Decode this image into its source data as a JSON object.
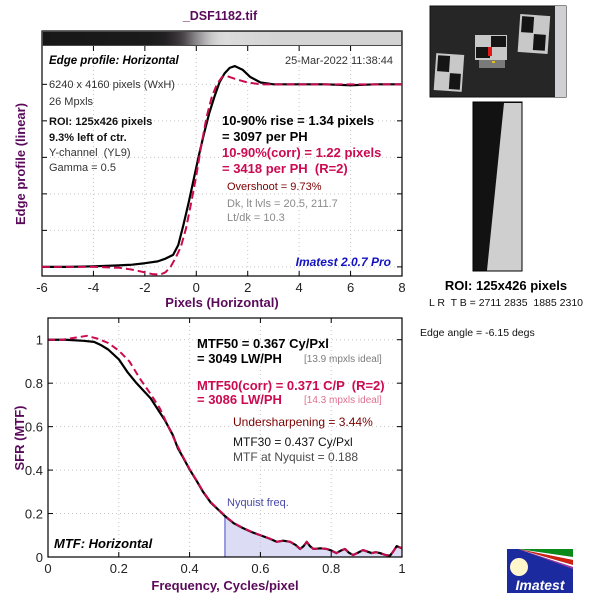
{
  "title": "_DSF1182.tif",
  "edge_panel": {
    "heading": "Edge profile: Horizontal",
    "timestamp": "25-Mar-2022 11:38:44",
    "image_size": "6240 x 4160 pixels (WxH)",
    "megapixels": "26 Mpxls",
    "roi": "ROI: 125x426 pixels",
    "roi_position": "9.3% left of ctr.",
    "channel": "Y-channel  (YL9)",
    "gamma": "Gamma = 0.5",
    "rise": "10-90% rise = 1.34 pixels",
    "rise_ph": "= 3097 per PH",
    "rise_corr": "10-90%(corr) = 1.22 pixels",
    "rise_corr_ph": "= 3418 per PH  (R=2)",
    "overshoot": "Overshoot = 9.73%",
    "levels": "Dk, lt lvls = 20.5, 211.7",
    "ratio": "Lt/dk = 10.3",
    "version": "Imatest 2.0.7 Pro"
  },
  "mtf_panel": {
    "heading": "MTF: Horizontal",
    "mtf50": "MTF50 = 0.367 Cy/Pxl",
    "mtf50_lwph": "= 3049 LW/PH",
    "mtf50_ideal": "[13.9 mpxls ideal]",
    "mtf50_corr": "MTF50(corr) = 0.371 C/P  (R=2)",
    "mtf50_corr_lwph": "= 3086 LW/PH",
    "mtf50_corr_ideal": "[14.3 mpxls ideal]",
    "undersharpening": "Undersharpening = 3.44%",
    "mtf30": "MTF30 = 0.437 Cy/Pxl",
    "mtf_nyquist": "MTF at Nyquist = 0.188",
    "nyquist_label": "Nyquist freq."
  },
  "roi_panel": {
    "roi_label": "ROI: 125x426 pixels",
    "coords": "L R  T B = 2711 2835  1885 2310",
    "edge_angle": "Edge angle = -6.15 degs"
  },
  "logo": {
    "text": "Imatest"
  },
  "colors": {
    "axis_label": "#5a0a5a",
    "measured": "#000000",
    "corrected": "#cc0a50",
    "nyquist_fill": "#dcdcf4",
    "nyquist_line": "#9a9ae0",
    "version": "#1212c2"
  },
  "chart_data": [
    {
      "type": "line",
      "title": "Edge profile: Horizontal",
      "xlabel": "Pixels (Horizontal)",
      "ylabel": "Edge profile (linear)",
      "xlim": [
        -6,
        8
      ],
      "ylim": [
        -0.05,
        1.21
      ],
      "xticks": [
        -6,
        -4,
        -2,
        0,
        2,
        4,
        6,
        8
      ],
      "xtick_labels": [
        "-6",
        "-4",
        "-2",
        "0",
        "2",
        "4",
        "6",
        "8"
      ],
      "yticks": [
        0,
        0.2,
        0.4,
        0.6,
        0.8,
        1.0
      ],
      "ytick_labels": [
        "",
        "",
        "",
        "",
        "",
        ""
      ],
      "grid": true,
      "series": [
        {
          "name": "Edge profile",
          "style": "solid",
          "color": "#000000",
          "x": [
            -6,
            -5,
            -4,
            -3,
            -2.5,
            -2,
            -1.5,
            -1.2,
            -0.9,
            -0.7,
            -0.5,
            -0.3,
            -0.1,
            0.1,
            0.3,
            0.5,
            0.7,
            0.9,
            1.1,
            1.3,
            1.5,
            1.8,
            2.1,
            2.5,
            3,
            4,
            5,
            6,
            7,
            8
          ],
          "y": [
            0,
            0,
            0.003,
            0.008,
            0.012,
            0.02,
            0.03,
            0.045,
            0.066,
            0.12,
            0.23,
            0.35,
            0.48,
            0.61,
            0.73,
            0.84,
            0.93,
            1.01,
            1.06,
            1.09,
            1.1,
            1.08,
            1.04,
            1.01,
            1.0,
            1.0,
            1.0,
            0.995,
            1.0,
            1.0
          ]
        },
        {
          "name": "Edge profile (corr)",
          "style": "dashed",
          "color": "#cc0a50",
          "x": [
            -6,
            -4,
            -3,
            -2.5,
            -2,
            -1.7,
            -1.4,
            -1.2,
            -1.0,
            -0.8,
            -0.6,
            -0.4,
            -0.2,
            0,
            0.2,
            0.4,
            0.6,
            0.8,
            1.0,
            1.2,
            1.5,
            2,
            2.5,
            3,
            4,
            5,
            6,
            7,
            8
          ],
          "y": [
            0,
            0,
            -0.005,
            -0.015,
            -0.03,
            -0.04,
            -0.042,
            -0.03,
            0,
            0.05,
            0.11,
            0.21,
            0.35,
            0.5,
            0.67,
            0.82,
            0.93,
            1.0,
            1.04,
            1.045,
            1.03,
            1.01,
            1.0,
            1.0,
            1.0,
            1.0,
            1.0,
            1.0,
            1.0
          ]
        }
      ]
    },
    {
      "type": "line",
      "title": "MTF: Horizontal",
      "xlabel": "Frequency, Cycles/pixel",
      "ylabel": "SFR (MTF)",
      "xlim": [
        0,
        1
      ],
      "ylim": [
        0,
        1.1
      ],
      "xticks": [
        0,
        0.2,
        0.4,
        0.6,
        0.8,
        1
      ],
      "xtick_labels": [
        "0",
        "0.2",
        "0.4",
        "0.6",
        "0.8",
        "1"
      ],
      "yticks": [
        0,
        0.2,
        0.4,
        0.6,
        0.8,
        1
      ],
      "ytick_labels": [
        "0",
        "0.2",
        "0.4",
        "0.6",
        "0.8",
        "1"
      ],
      "grid": true,
      "nyquist": 0.5,
      "shade_from": 0.5,
      "series": [
        {
          "name": "MTF",
          "style": "solid",
          "color": "#000000",
          "x": [
            0,
            0.05,
            0.1,
            0.13,
            0.15,
            0.17,
            0.2,
            0.225,
            0.25,
            0.27,
            0.29,
            0.31,
            0.33,
            0.353,
            0.367,
            0.381,
            0.401,
            0.42,
            0.438,
            0.46,
            0.486,
            0.5,
            0.525,
            0.551,
            0.575,
            0.6,
            0.625,
            0.646,
            0.665,
            0.684,
            0.7,
            0.712,
            0.722,
            0.731,
            0.74,
            0.75,
            0.77,
            0.787,
            0.8,
            0.815,
            0.828,
            0.839,
            0.85,
            0.862,
            0.876,
            0.89,
            0.902,
            0.914,
            0.926,
            0.938,
            0.952,
            0.966,
            0.975,
            0.985,
            1.0
          ],
          "y": [
            1.0,
            1.0,
            0.995,
            0.99,
            0.975,
            0.955,
            0.91,
            0.85,
            0.8,
            0.765,
            0.73,
            0.68,
            0.63,
            0.56,
            0.5,
            0.46,
            0.4,
            0.35,
            0.3,
            0.25,
            0.21,
            0.188,
            0.155,
            0.133,
            0.115,
            0.1,
            0.085,
            0.07,
            0.075,
            0.07,
            0.055,
            0.037,
            0.05,
            0.07,
            0.05,
            0.037,
            0.04,
            0.037,
            0.03,
            0.018,
            0.03,
            0.037,
            0.02,
            0.009,
            0.02,
            0.032,
            0.025,
            0.018,
            0.022,
            0.018,
            0.01,
            0.006,
            0.025,
            0.05,
            0.04
          ]
        },
        {
          "name": "MTF (corr)",
          "style": "dashed",
          "color": "#cc0a50",
          "x": [
            0,
            0.04,
            0.08,
            0.11,
            0.14,
            0.17,
            0.2,
            0.23,
            0.26,
            0.29,
            0.316,
            0.34,
            0.36,
            0.381,
            0.401,
            0.42,
            0.438,
            0.46,
            0.486,
            0.5,
            0.525,
            0.551,
            0.575,
            0.6,
            0.625,
            0.646,
            0.665,
            0.684,
            0.7,
            0.712,
            0.722,
            0.731,
            0.74,
            0.75,
            0.77,
            0.787,
            0.8,
            0.815,
            0.828,
            0.839,
            0.85,
            0.862,
            0.876,
            0.89,
            0.902,
            0.914,
            0.926,
            0.938,
            0.952,
            0.966,
            0.975,
            0.985,
            1.0
          ],
          "y": [
            1.0,
            1.0,
            1.01,
            1.018,
            1.005,
            0.985,
            0.95,
            0.9,
            0.82,
            0.75,
            0.684,
            0.6,
            0.53,
            0.463,
            0.402,
            0.352,
            0.302,
            0.252,
            0.212,
            0.19,
            0.156,
            0.134,
            0.116,
            0.1,
            0.086,
            0.07,
            0.076,
            0.07,
            0.056,
            0.037,
            0.05,
            0.07,
            0.05,
            0.037,
            0.04,
            0.037,
            0.03,
            0.018,
            0.03,
            0.037,
            0.02,
            0.009,
            0.02,
            0.032,
            0.025,
            0.018,
            0.022,
            0.018,
            0.01,
            0.006,
            0.025,
            0.05,
            0.04
          ]
        }
      ]
    }
  ]
}
